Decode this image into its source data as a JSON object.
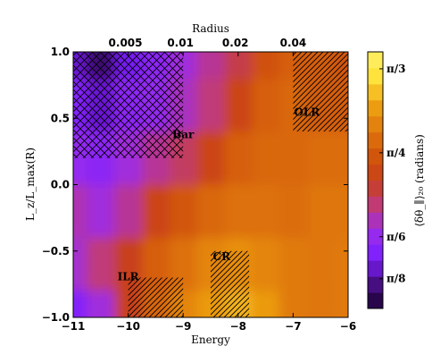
{
  "chart_data": {
    "type": "heatmap",
    "xlabel": "Energy",
    "ylabel": "L_z/L_max(R)",
    "top_axis_label": "Radius",
    "colorbar_label": "⟨δθ_∥⟩₂₀ (radians)",
    "xlim": [
      -11,
      -6
    ],
    "ylim": [
      -1.0,
      1.0
    ],
    "x_ticks": [
      -11,
      -10,
      -9,
      -8,
      -7,
      -6
    ],
    "x_tick_labels": [
      "−11",
      "−10",
      "−9",
      "−8",
      "−7",
      "−6"
    ],
    "y_ticks": [
      -1.0,
      -0.5,
      0.0,
      0.5,
      1.0
    ],
    "y_tick_labels": [
      "−1.0",
      "−0.5",
      "0.0",
      "0.5",
      "1.0"
    ],
    "top_ticks_energy": [
      -10.05,
      -9.05,
      -8.05,
      -7.0
    ],
    "top_tick_labels": [
      "0.005",
      "0.01",
      "0.02",
      "0.04"
    ],
    "color_range": [
      0.3,
      1.1
    ],
    "colorbar_ticks": [
      0.3927,
      0.5236,
      0.7854,
      1.0472
    ],
    "colorbar_tick_labels": [
      "π/8",
      "π/6",
      "π/4",
      "π/3"
    ],
    "colorbar_colors": [
      "#1a0030",
      "#4a0f86",
      "#7b1fff",
      "#9c2cea",
      "#c03a7a",
      "#c8401a",
      "#d2560a",
      "#e07a0d",
      "#efa412",
      "#ffe23a",
      "#fff06a"
    ],
    "x_grid": [
      -11,
      -10.5,
      -10,
      -9.5,
      -9,
      -8.5,
      -8,
      -7.5,
      -7,
      -6.5,
      -6
    ],
    "y_grid": [
      1.0,
      0.6,
      0.2,
      -0.2,
      -0.6,
      -1.0
    ],
    "values": [
      [
        0.43,
        0.36,
        0.45,
        0.5,
        0.55,
        0.6,
        0.66,
        0.76,
        0.8,
        0.8,
        0.78
      ],
      [
        0.48,
        0.43,
        0.5,
        0.52,
        0.57,
        0.62,
        0.72,
        0.8,
        0.82,
        0.8,
        0.8
      ],
      [
        0.52,
        0.5,
        0.55,
        0.6,
        0.64,
        0.72,
        0.8,
        0.82,
        0.82,
        0.83,
        0.83
      ],
      [
        0.58,
        0.55,
        0.6,
        0.72,
        0.78,
        0.82,
        0.84,
        0.84,
        0.83,
        0.85,
        0.85
      ],
      [
        0.56,
        0.62,
        0.7,
        0.8,
        0.84,
        0.88,
        0.9,
        0.88,
        0.86,
        0.85,
        0.86
      ],
      [
        0.48,
        0.55,
        0.7,
        0.82,
        0.88,
        0.92,
        0.96,
        0.92,
        0.86,
        0.85,
        0.86
      ]
    ],
    "regions": [
      {
        "name": "Bar",
        "hatch": "cross",
        "x": [
          -11,
          -9
        ],
        "y": [
          0.2,
          1.0
        ],
        "label_at": [
          -9.0,
          0.35
        ]
      },
      {
        "name": "OLR",
        "hatch": "diagonal",
        "x": [
          -7.0,
          -6.0
        ],
        "y": [
          0.4,
          1.0
        ],
        "label_at": [
          -6.75,
          0.52
        ]
      },
      {
        "name": "CR",
        "hatch": "diagonal",
        "x": [
          -8.5,
          -7.8
        ],
        "y": [
          -1.0,
          -0.5
        ],
        "label_at": [
          -8.3,
          -0.57
        ]
      },
      {
        "name": "ILR",
        "hatch": "diagonal",
        "x": [
          -10.0,
          -9.0
        ],
        "y": [
          -1.0,
          -0.7
        ],
        "label_at": [
          -10.0,
          -0.72
        ]
      }
    ]
  }
}
